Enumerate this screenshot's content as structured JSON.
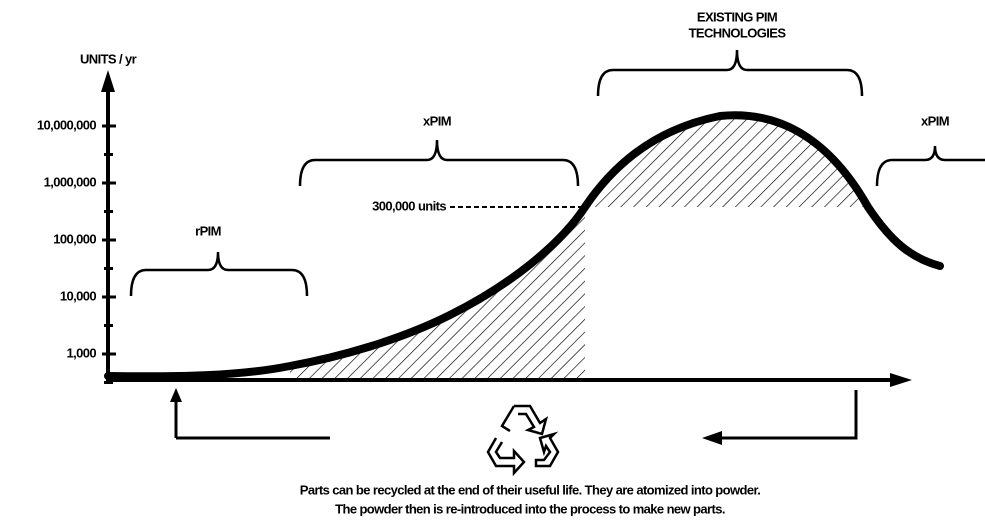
{
  "y_axis": {
    "label": "UNITS / yr",
    "ticks": [
      "1,000",
      "10,000",
      "100,000",
      "1,000,000",
      "10,000,000"
    ]
  },
  "regions": [
    {
      "label": "rPIM"
    },
    {
      "label": "xPIM"
    },
    {
      "label_lines": [
        "EXISTING PIM",
        "TECHNOLOGIES"
      ]
    },
    {
      "label": "xPIM"
    }
  ],
  "threshold": {
    "label": "300,000 units"
  },
  "caption": [
    "Parts can be recycled at the end of their useful life. They are atomized into powder.",
    "The powder then is re-introduced into the process to make new parts."
  ]
}
